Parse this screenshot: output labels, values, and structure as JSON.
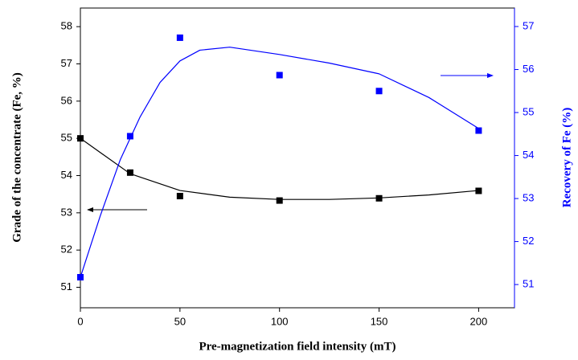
{
  "chart_data": {
    "type": "scatter",
    "x_label": "Pre-magnetization field intensity (mT)",
    "y_label": "Grade of the concentrate (Fe, %)",
    "y2_label": "Recovery of Fe (%)",
    "x": [
      0,
      25,
      50,
      100,
      150,
      200
    ],
    "series": [
      {
        "color": "#000000",
        "values": [
          55.0,
          54.08,
          53.45,
          53.33,
          53.39,
          53.59
        ]
      },
      {
        "color": "#0000ff",
        "axis": "y2",
        "values": [
          51.17,
          54.45,
          56.74,
          55.87,
          55.5,
          54.58
        ]
      }
    ],
    "fits": [
      {
        "color": "#000000",
        "x": [
          0,
          25,
          50,
          75,
          100,
          125,
          150,
          175,
          200
        ],
        "values": [
          55.0,
          54.05,
          53.6,
          53.42,
          53.36,
          53.36,
          53.4,
          53.48,
          53.6
        ]
      },
      {
        "color": "#0000ff",
        "axis": "y2",
        "x": [
          0,
          10,
          20,
          30,
          40,
          50,
          60,
          75,
          100,
          125,
          150,
          175,
          200
        ],
        "values": [
          51.17,
          52.6,
          53.9,
          54.9,
          55.7,
          56.2,
          56.45,
          56.52,
          56.35,
          56.15,
          55.9,
          55.35,
          54.63
        ]
      }
    ],
    "xlim": [
      0,
      218
    ],
    "xticks": [
      0,
      50,
      100,
      150,
      200
    ],
    "ylim": [
      50.45,
      58.5
    ],
    "yticks": [
      51,
      52,
      53,
      54,
      55,
      56,
      57,
      58
    ],
    "y2lim": [
      50.46,
      57.43
    ],
    "y2ticks": [
      51,
      52,
      53,
      54,
      55,
      56,
      57
    ]
  }
}
